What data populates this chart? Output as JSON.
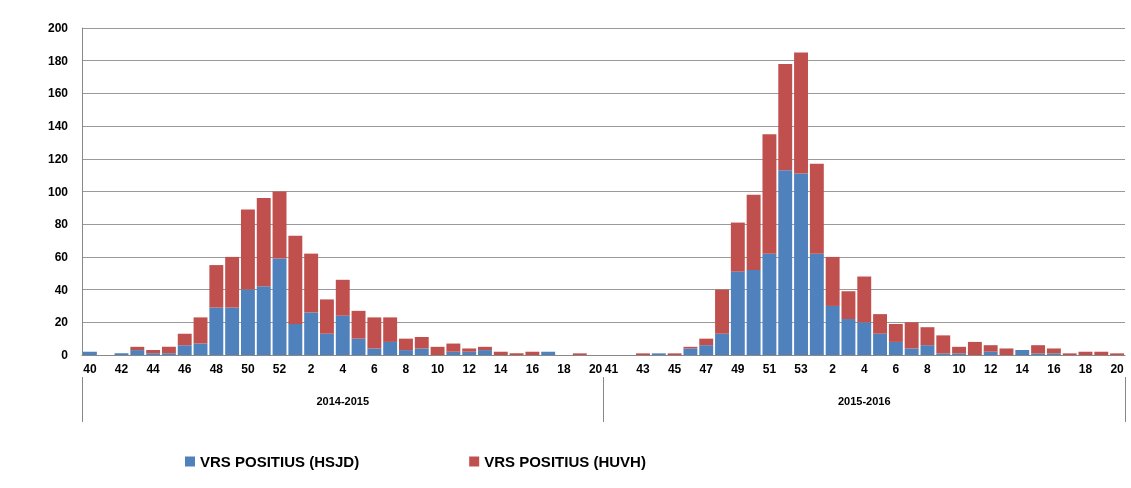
{
  "chart_data": {
    "type": "bar",
    "stacked": true,
    "categories": [
      "40",
      null,
      "42",
      null,
      "44",
      null,
      "46",
      null,
      "48",
      null,
      "50",
      null,
      "52",
      null,
      "2",
      null,
      "4",
      null,
      "6",
      null,
      "8",
      null,
      "10",
      null,
      "12",
      null,
      "14",
      null,
      "16",
      null,
      "18",
      null,
      "20",
      "41",
      null,
      "43",
      null,
      "45",
      null,
      "47",
      null,
      "49",
      null,
      "51",
      null,
      "53",
      null,
      "2",
      null,
      "4",
      null,
      "6",
      null,
      "8",
      null,
      "10",
      null,
      "12",
      null,
      "14",
      null,
      "16",
      null,
      "18",
      null,
      "20"
    ],
    "series": [
      {
        "name": "VRS POSITIUS (HSJD)",
        "color": "#4f81bd",
        "values": [
          2,
          0,
          1,
          3,
          1,
          1,
          6,
          7,
          29,
          29,
          40,
          42,
          59,
          19,
          26,
          13,
          24,
          10,
          4,
          8,
          3,
          4,
          0,
          2,
          2,
          3,
          0,
          0,
          0,
          2,
          0,
          0,
          0,
          0,
          0,
          0,
          1,
          0,
          4,
          6,
          13,
          51,
          52,
          62,
          113,
          111,
          62,
          30,
          22,
          20,
          13,
          8,
          4,
          6,
          1,
          1,
          0,
          2,
          0,
          3,
          1,
          1,
          0,
          0,
          0,
          0
        ]
      },
      {
        "name": "VRS POSITIUS (HUVH)",
        "color": "#c0504d",
        "values": [
          0,
          0,
          0,
          2,
          2,
          4,
          7,
          16,
          26,
          31,
          49,
          54,
          41,
          54,
          36,
          21,
          22,
          17,
          19,
          15,
          7,
          7,
          5,
          5,
          2,
          2,
          2,
          1,
          2,
          0,
          0,
          1,
          0,
          0,
          0,
          1,
          0,
          1,
          1,
          4,
          27,
          30,
          46,
          73,
          65,
          74,
          55,
          30,
          17,
          28,
          12,
          11,
          16,
          11,
          11,
          4,
          8,
          4,
          4,
          0,
          5,
          3,
          1,
          2,
          2,
          1
        ]
      }
    ],
    "annotations": [
      "2014-2015",
      "2015-2016"
    ],
    "ylim": [
      0,
      200
    ],
    "yticks": [
      0,
      20,
      40,
      60,
      80,
      100,
      120,
      140,
      160,
      180,
      200
    ],
    "grid": "y",
    "legend": "bottom"
  }
}
